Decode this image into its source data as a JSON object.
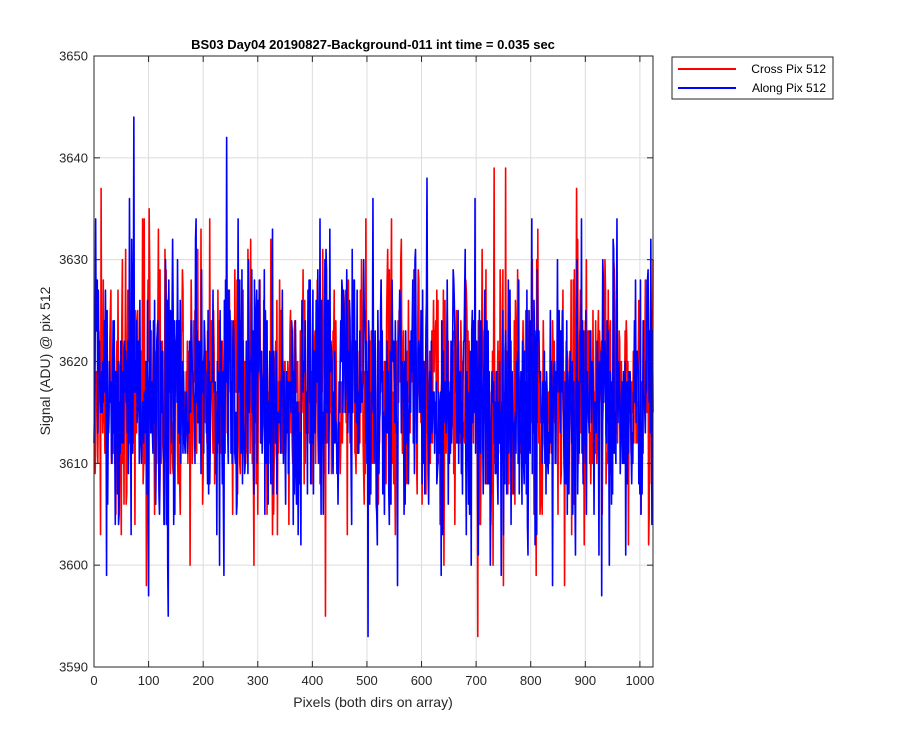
{
  "chart_data": {
    "type": "line",
    "title": "BS03 Day04 20190827-Background-011 int time = 0.035 sec",
    "xlabel": "Pixels (both dirs on array)",
    "ylabel": "Signal (ADU) @ pix 512",
    "xlim": [
      0,
      1024
    ],
    "ylim": [
      3590,
      3650
    ],
    "x_ticks": [
      0,
      100,
      200,
      300,
      400,
      500,
      600,
      700,
      800,
      900,
      1000
    ],
    "y_ticks": [
      3590,
      3600,
      3610,
      3620,
      3630,
      3640,
      3650
    ],
    "grid": true,
    "legend_placement": "outside top-right",
    "series": [
      {
        "name": "Cross Pix 512",
        "color": "#ff0000",
        "mean": 3617,
        "std": 6.5,
        "x_range": [
          0,
          1024
        ],
        "extremes": [
          {
            "x": 13,
            "y": 3637
          },
          {
            "x": 703,
            "y": 3593
          },
          {
            "x": 733,
            "y": 3639
          },
          {
            "x": 176,
            "y": 3600
          },
          {
            "x": 862,
            "y": 3598
          }
        ]
      },
      {
        "name": "Along Pix 512",
        "color": "#0000ff",
        "mean": 3617,
        "std": 7,
        "x_range": [
          0,
          1024
        ],
        "extremes": [
          {
            "x": 73,
            "y": 3644
          },
          {
            "x": 243,
            "y": 3642
          },
          {
            "x": 502,
            "y": 3593
          },
          {
            "x": 136,
            "y": 3595
          },
          {
            "x": 100,
            "y": 3597
          },
          {
            "x": 930,
            "y": 3597
          }
        ]
      }
    ]
  }
}
